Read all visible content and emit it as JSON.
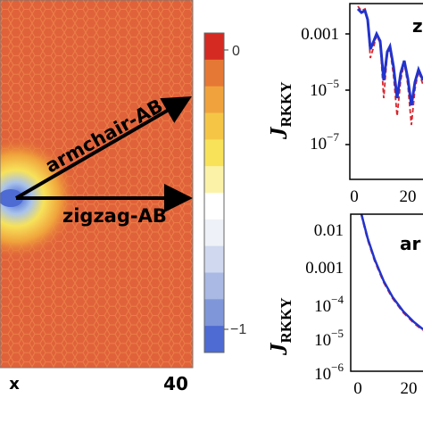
{
  "colorbar": {
    "tick_top": "0",
    "tick_bottom": "−1",
    "colors": [
      "#d42a22",
      "#e67835",
      "#f0a33c",
      "#f5c646",
      "#f7e25a",
      "#fbf2a8",
      "#ffffff",
      "#eef1f7",
      "#cfd8ef",
      "#a9b9e4",
      "#7f96d9",
      "#4d6bd2"
    ]
  },
  "heatmap": {
    "background": "#e0623a",
    "arrow_armchair_label": "armchair-AB",
    "arrow_zigzag_label": "zigzag-AB",
    "x_tick_left": "x",
    "x_tick_right": "40"
  },
  "top_panel": {
    "y_axis_label_main": "J",
    "y_axis_label_sub": "RKKY",
    "y_ticks": [
      "0.001",
      "10",
      "10"
    ],
    "y_tick_exponents": [
      "",
      "−5",
      "−7"
    ],
    "x_ticks": [
      "0",
      "20"
    ],
    "corner_label": "z"
  },
  "bottom_panel": {
    "y_axis_label_main": "J",
    "y_axis_label_sub": "RKKY",
    "y_ticks": [
      "0.01",
      "0.001",
      "10",
      "10",
      "10"
    ],
    "y_tick_exponents": [
      "",
      "",
      "−4",
      "−5",
      "−6"
    ],
    "x_ticks": [
      "0",
      "20"
    ],
    "corner_label": "ar"
  }
}
